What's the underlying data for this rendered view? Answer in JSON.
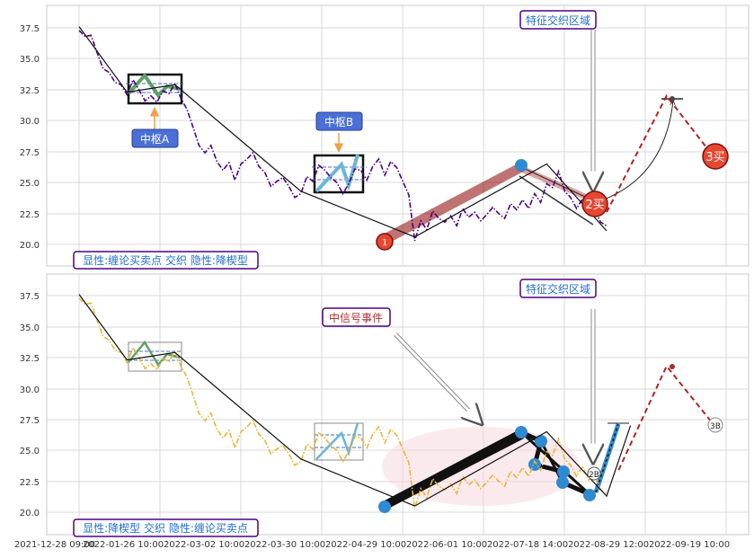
{
  "chart_data": [
    {
      "type": "line",
      "panel": "top",
      "title": "",
      "ylim": [
        18.5,
        39.5
      ],
      "yticks": [
        "20.0",
        "22.5",
        "25.0",
        "27.5",
        "30.0",
        "32.5",
        "35.0",
        "37.5"
      ],
      "grid": true,
      "series": [
        {
          "style": "price (purple dash-dot)",
          "color": "#4b0082",
          "points": [
            [
              0,
              37.3
            ],
            [
              1,
              36.8
            ],
            [
              2,
              36.9
            ],
            [
              3,
              35.5
            ],
            [
              4,
              34.2
            ],
            [
              5,
              33.9
            ],
            [
              6,
              33.1
            ],
            [
              7,
              32.9
            ],
            [
              8,
              32.1
            ],
            [
              9,
              33.3
            ],
            [
              10,
              32.5
            ],
            [
              11,
              31.6
            ],
            [
              12,
              32.0
            ],
            [
              13,
              31.5
            ],
            [
              14,
              32.4
            ],
            [
              15,
              32.2
            ],
            [
              16,
              33.0
            ],
            [
              17,
              31.8
            ],
            [
              18,
              30.9
            ],
            [
              19,
              29.5
            ],
            [
              20,
              28.0
            ],
            [
              21,
              27.4
            ],
            [
              22,
              28.0
            ],
            [
              23,
              26.7
            ],
            [
              24,
              26.0
            ],
            [
              25,
              26.6
            ],
            [
              26,
              25.2
            ],
            [
              27,
              26.5
            ],
            [
              28,
              26.9
            ],
            [
              29,
              27.4
            ],
            [
              30,
              26.3
            ],
            [
              31,
              25.8
            ],
            [
              32,
              24.7
            ],
            [
              33,
              25.1
            ],
            [
              34,
              25.4
            ],
            [
              35,
              24.7
            ],
            [
              36,
              23.8
            ],
            [
              37,
              24.1
            ],
            [
              38,
              25.5
            ],
            [
              39,
              25.1
            ],
            [
              40,
              26.4
            ],
            [
              41,
              26.0
            ],
            [
              42,
              25.4
            ],
            [
              43,
              25.0
            ],
            [
              44,
              24.1
            ],
            [
              45,
              24.9
            ],
            [
              46,
              26.1
            ],
            [
              47,
              26.0
            ],
            [
              48,
              25.2
            ],
            [
              49,
              26.3
            ],
            [
              50,
              26.9
            ],
            [
              51,
              25.6
            ],
            [
              52,
              26.7
            ],
            [
              53,
              26.2
            ],
            [
              54,
              25.1
            ],
            [
              55,
              24.0
            ],
            [
              56,
              20.3
            ],
            [
              57,
              21.9
            ],
            [
              58,
              21.2
            ],
            [
              59,
              22.7
            ],
            [
              60,
              22.1
            ],
            [
              61,
              21.8
            ],
            [
              62,
              22.3
            ],
            [
              63,
              21.5
            ],
            [
              64,
              22.9
            ],
            [
              65,
              22.2
            ],
            [
              66,
              22.6
            ],
            [
              67,
              21.9
            ],
            [
              68,
              22.4
            ],
            [
              69,
              23.0
            ],
            [
              70,
              22.5
            ],
            [
              71,
              22.1
            ],
            [
              72,
              23.3
            ],
            [
              73,
              22.8
            ],
            [
              74,
              23.6
            ],
            [
              75,
              22.9
            ],
            [
              76,
              24.1
            ],
            [
              77,
              23.4
            ],
            [
              78,
              24.9
            ],
            [
              79,
              24.6
            ],
            [
              80,
              25.9
            ],
            [
              81,
              24.3
            ],
            [
              82,
              23.8
            ],
            [
              83,
              22.9
            ],
            [
              84,
              23.7
            ],
            [
              85,
              22.6
            ],
            [
              86,
              22.9
            ],
            [
              87,
              21.8
            ],
            [
              88,
              21.5
            ]
          ]
        },
        {
          "style": "stroke (black)",
          "color": "#111111",
          "points": [
            [
              0,
              37.6
            ],
            [
              8,
              32.3
            ],
            [
              16,
              32.9
            ],
            [
              37,
              24.3
            ],
            [
              56,
              20.6
            ],
            [
              78,
              26.5
            ],
            [
              88,
              21.1
            ]
          ]
        },
        {
          "style": "projection (red dashed)",
          "color": "#b22222",
          "points": [
            [
              88,
              22.6
            ],
            [
              98,
              32.0
            ],
            [
              106,
              27.0
            ]
          ]
        }
      ],
      "annotations": [
        {
          "text": "中枢A",
          "style": "blue box"
        },
        {
          "text": "中枢B",
          "style": "blue box"
        },
        {
          "text": "特征交织区域",
          "style": "outlined"
        },
        {
          "text": "1",
          "style": "marker"
        },
        {
          "text": "2买",
          "style": "marker"
        },
        {
          "text": "3买",
          "style": "marker"
        },
        {
          "text": "显性:缠论买卖点 交织 隐性:降楔型",
          "style": "caption"
        }
      ]
    },
    {
      "type": "line",
      "panel": "bottom",
      "title": "",
      "ylim": [
        18.5,
        39.5
      ],
      "yticks": [
        "20.0",
        "22.5",
        "25.0",
        "27.5",
        "30.0",
        "32.5",
        "35.0",
        "37.5"
      ],
      "xticks": [
        "2021-12-28 09:00",
        "2022-01-26 10:00",
        "2022-03-02 10:00",
        "2022-03-30 10:00",
        "2022-04-29 10:00",
        "2022-06-01 10:00",
        "2022-07-18 14:00",
        "2022-08-29 12:00",
        "2022-09-19 10:00"
      ],
      "grid": true,
      "series": [
        {
          "style": "price (orange dash-dot)",
          "color": "#e8b53a",
          "points": [
            [
              0,
              37.3
            ],
            [
              1,
              36.8
            ],
            [
              2,
              36.9
            ],
            [
              3,
              35.5
            ],
            [
              4,
              34.2
            ],
            [
              5,
              33.9
            ],
            [
              6,
              33.1
            ],
            [
              7,
              32.9
            ],
            [
              8,
              32.1
            ],
            [
              9,
              33.3
            ],
            [
              10,
              32.5
            ],
            [
              11,
              31.6
            ],
            [
              12,
              32.0
            ],
            [
              13,
              31.5
            ],
            [
              14,
              32.4
            ],
            [
              15,
              32.2
            ],
            [
              16,
              33.0
            ],
            [
              17,
              31.8
            ],
            [
              18,
              30.9
            ],
            [
              19,
              29.5
            ],
            [
              20,
              28.0
            ],
            [
              21,
              27.4
            ],
            [
              22,
              28.0
            ],
            [
              23,
              26.7
            ],
            [
              24,
              26.0
            ],
            [
              25,
              26.6
            ],
            [
              26,
              25.2
            ],
            [
              27,
              26.5
            ],
            [
              28,
              26.9
            ],
            [
              29,
              27.4
            ],
            [
              30,
              26.3
            ],
            [
              31,
              25.8
            ],
            [
              32,
              24.7
            ],
            [
              33,
              25.1
            ],
            [
              34,
              25.4
            ],
            [
              35,
              24.7
            ],
            [
              36,
              23.8
            ],
            [
              37,
              24.1
            ],
            [
              38,
              25.5
            ],
            [
              39,
              25.1
            ],
            [
              40,
              26.4
            ],
            [
              41,
              26.0
            ],
            [
              42,
              25.4
            ],
            [
              43,
              25.0
            ],
            [
              44,
              24.1
            ],
            [
              45,
              24.9
            ],
            [
              46,
              26.1
            ],
            [
              47,
              26.0
            ],
            [
              48,
              25.2
            ],
            [
              49,
              26.3
            ],
            [
              50,
              26.9
            ],
            [
              51,
              25.6
            ],
            [
              52,
              26.7
            ],
            [
              53,
              26.2
            ],
            [
              54,
              25.1
            ],
            [
              55,
              24.0
            ],
            [
              56,
              20.3
            ],
            [
              57,
              21.9
            ],
            [
              58,
              21.2
            ],
            [
              59,
              22.7
            ],
            [
              60,
              22.1
            ],
            [
              61,
              21.8
            ],
            [
              62,
              22.3
            ],
            [
              63,
              21.5
            ],
            [
              64,
              22.9
            ],
            [
              65,
              22.2
            ],
            [
              66,
              22.6
            ],
            [
              67,
              21.9
            ],
            [
              68,
              22.4
            ],
            [
              69,
              23.0
            ],
            [
              70,
              22.5
            ],
            [
              71,
              22.1
            ],
            [
              72,
              23.3
            ],
            [
              73,
              22.8
            ],
            [
              74,
              23.6
            ],
            [
              75,
              22.9
            ],
            [
              76,
              24.1
            ],
            [
              77,
              23.4
            ],
            [
              78,
              24.9
            ],
            [
              79,
              24.6
            ],
            [
              80,
              25.9
            ],
            [
              81,
              24.3
            ],
            [
              82,
              23.8
            ],
            [
              83,
              22.9
            ],
            [
              84,
              23.7
            ],
            [
              85,
              22.6
            ],
            [
              86,
              22.9
            ],
            [
              87,
              21.8
            ],
            [
              88,
              21.5
            ]
          ]
        },
        {
          "style": "stroke (black)",
          "color": "#111111",
          "points": [
            [
              0,
              37.6
            ],
            [
              8,
              32.3
            ],
            [
              16,
              32.9
            ],
            [
              37,
              24.3
            ],
            [
              56,
              20.5
            ],
            [
              78,
              26.5
            ],
            [
              88,
              21.3
            ],
            [
              92,
              27.0
            ]
          ]
        },
        {
          "style": "projection (red dashed)",
          "color": "#b22222",
          "points": [
            [
              90,
              23.4
            ],
            [
              98,
              31.8
            ],
            [
              106,
              27.0
            ]
          ]
        }
      ],
      "annotations": [
        {
          "text": "特征交织区域",
          "style": "outlined"
        },
        {
          "text": "中信号事件",
          "style": "outlined"
        },
        {
          "text": "2B",
          "style": "marker"
        },
        {
          "text": "3B",
          "style": "marker"
        },
        {
          "text": "显性:降楔型 交织 隐性:缠论买卖点",
          "style": "caption"
        }
      ]
    }
  ]
}
